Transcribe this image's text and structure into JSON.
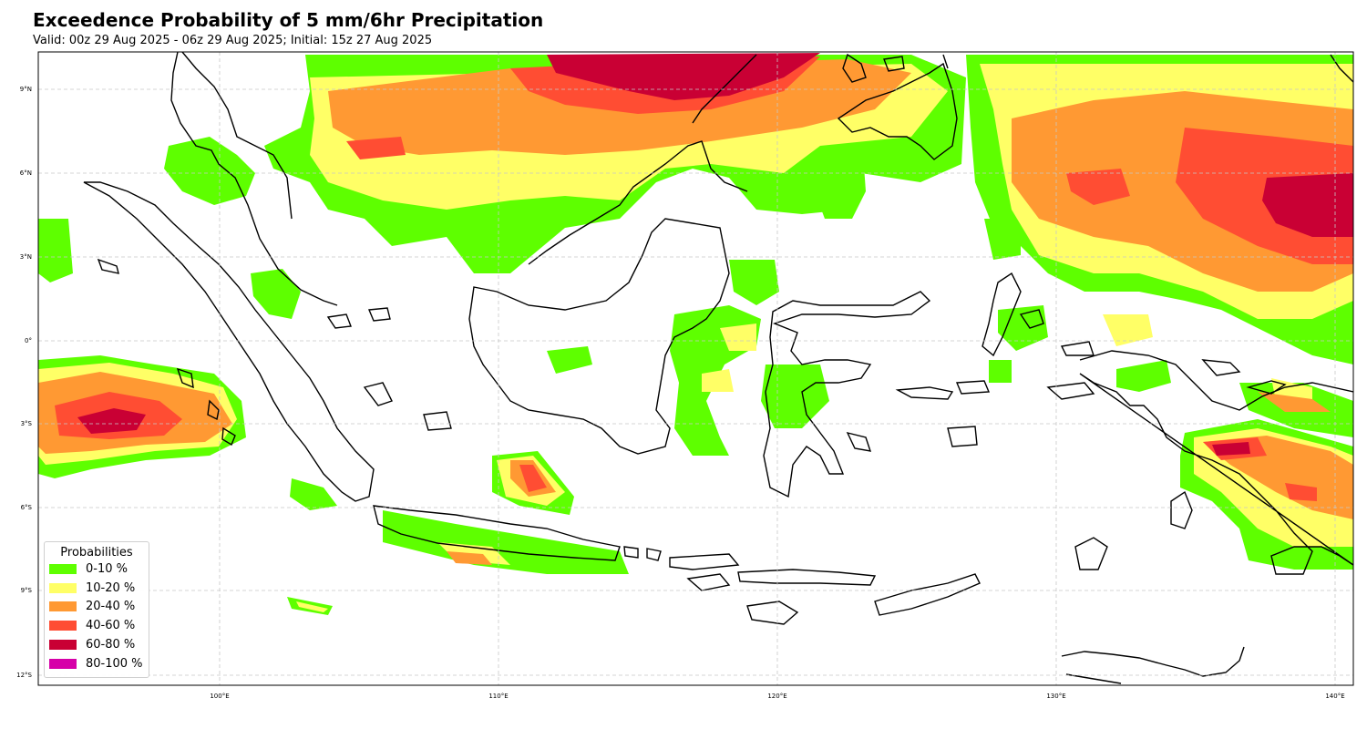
{
  "header": {
    "title": "Exceedence Probability of 5 mm/6hr Precipitation",
    "subtitle": "Valid: 00z 29 Aug 2025 - 06z 29 Aug 2025; Initial: 15z 27 Aug 2025"
  },
  "axes": {
    "lon_ticks": [
      "100°E",
      "110°E",
      "120°E",
      "130°E",
      "140°E"
    ],
    "lat_ticks": [
      "9°N",
      "6°N",
      "3°N",
      "0°",
      "3°S",
      "6°S",
      "9°S",
      "12°S"
    ],
    "lon_range": [
      93.5,
      140.7
    ],
    "lat_range": [
      -12.4,
      10.3
    ],
    "grid": true
  },
  "legend": {
    "title": "Probabilities",
    "placement": "lower-left",
    "items": [
      {
        "label": "0-10 %",
        "color": "#5eff00"
      },
      {
        "label": "10-20 %",
        "color": "#ffff66"
      },
      {
        "label": "20-40 %",
        "color": "#ff9933"
      },
      {
        "label": "40-60 %",
        "color": "#ff4d33"
      },
      {
        "label": "60-80 %",
        "color": "#c90034"
      },
      {
        "label": "80-100 %",
        "color": "#d600a8"
      }
    ]
  }
}
